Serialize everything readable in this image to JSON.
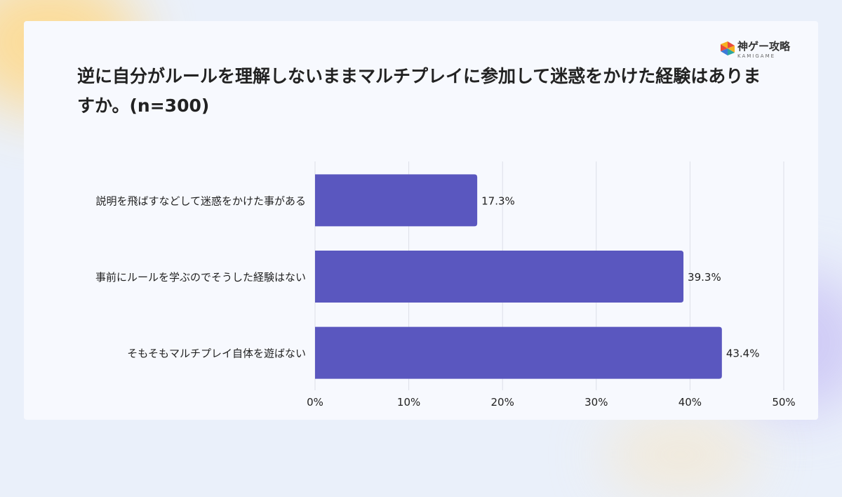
{
  "brand": {
    "name": "神ゲー攻略",
    "sub": "KAMIGAME",
    "colors": [
      "#e94b3c",
      "#f5b120",
      "#2aa6a0",
      "#3d7bd8"
    ]
  },
  "title": "逆に自分がルールを理解しないままマルチプレイに参加して迷惑をかけた経験はありますか。(n=300)",
  "chart_data": {
    "type": "bar",
    "orientation": "horizontal",
    "categories": [
      "説明を飛ばすなどして迷惑をかけた事がある",
      "事前にルールを学ぶのでそうした経験はない",
      "そもそもマルチプレイ自体を遊ばない"
    ],
    "values": [
      17.3,
      39.3,
      43.4
    ],
    "value_labels": [
      "17.3%",
      "39.3%",
      "43.4%"
    ],
    "xlim": [
      0,
      50
    ],
    "x_ticks": [
      "0%",
      "10%",
      "20%",
      "30%",
      "40%",
      "50%"
    ],
    "grid": true,
    "bar_color": "#5a57bf"
  }
}
